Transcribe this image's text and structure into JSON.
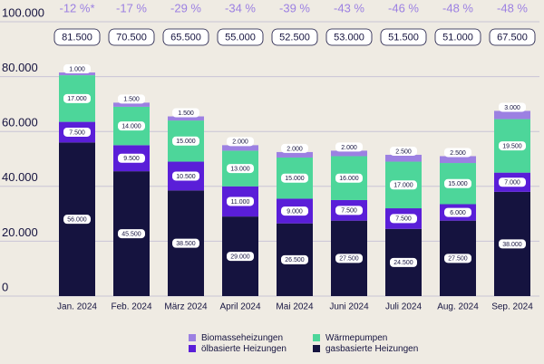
{
  "chart_data": {
    "type": "stacked_bar",
    "categories": [
      "Jan. 2024",
      "Feb. 2024",
      "März 2024",
      "April 2024",
      "Mai 2024",
      "Juni 2024",
      "Juli 2024",
      "Aug. 2024",
      "Sep. 2024"
    ],
    "series": [
      {
        "name": "gasbasierte Heizungen",
        "color": "#15133f",
        "values": [
          56000,
          45500,
          38500,
          29000,
          26500,
          27500,
          24500,
          27500,
          38000
        ],
        "value_labels": [
          "56.000",
          "45.500",
          "38.500",
          "29.000",
          "26.500",
          "27.500",
          "24.500",
          "27.500",
          "38.000"
        ]
      },
      {
        "name": "ölbasierte Heizungen",
        "color": "#5a1ed8",
        "values": [
          7500,
          9500,
          10500,
          11000,
          9000,
          7500,
          7500,
          6000,
          7000
        ],
        "value_labels": [
          "7.500",
          "9.500",
          "10.500",
          "11.000",
          "9.000",
          "7.500",
          "7.500",
          "6.000",
          "7.000"
        ]
      },
      {
        "name": "Wärmepumpen",
        "color": "#4dd69a",
        "values": [
          17000,
          14000,
          15000,
          13000,
          15000,
          16000,
          17000,
          15000,
          19500
        ],
        "value_labels": [
          "17.000",
          "14.000",
          "15.000",
          "13.000",
          "15.000",
          "16.000",
          "17.000",
          "15.000",
          "19.500"
        ]
      },
      {
        "name": "Biomasseheizungen",
        "color": "#9c80e2",
        "values": [
          1000,
          1500,
          1500,
          2000,
          2000,
          2000,
          2500,
          2500,
          3000
        ],
        "value_labels": [
          "1.000",
          "1.500",
          "1.500",
          "2.000",
          "2.000",
          "2.000",
          "2.500",
          "2.500",
          "3.000"
        ]
      }
    ],
    "totals": {
      "values": [
        81500,
        70500,
        65500,
        55000,
        52500,
        53000,
        51500,
        51000,
        67500
      ],
      "value_labels": [
        "81.500",
        "70.500",
        "65.500",
        "55.000",
        "52.500",
        "53.000",
        "51.500",
        "51.000",
        "67.500"
      ]
    },
    "changes": [
      "-12 %*",
      "-17 %",
      "-29 %",
      "-34 %",
      "-39 %",
      "-43 %",
      "-46 %",
      "-48 %",
      "-48 %"
    ],
    "ylim": [
      0,
      100000
    ],
    "yticks": [
      0,
      {
        "value": 20000,
        "label": "20.000"
      },
      {
        "value": 40000,
        "label": "40.000"
      },
      {
        "value": 60000,
        "label": "60.000"
      },
      {
        "value": 80000,
        "label": "80.000"
      },
      {
        "value": 100000,
        "label": "100.000"
      }
    ],
    "grid": true
  }
}
